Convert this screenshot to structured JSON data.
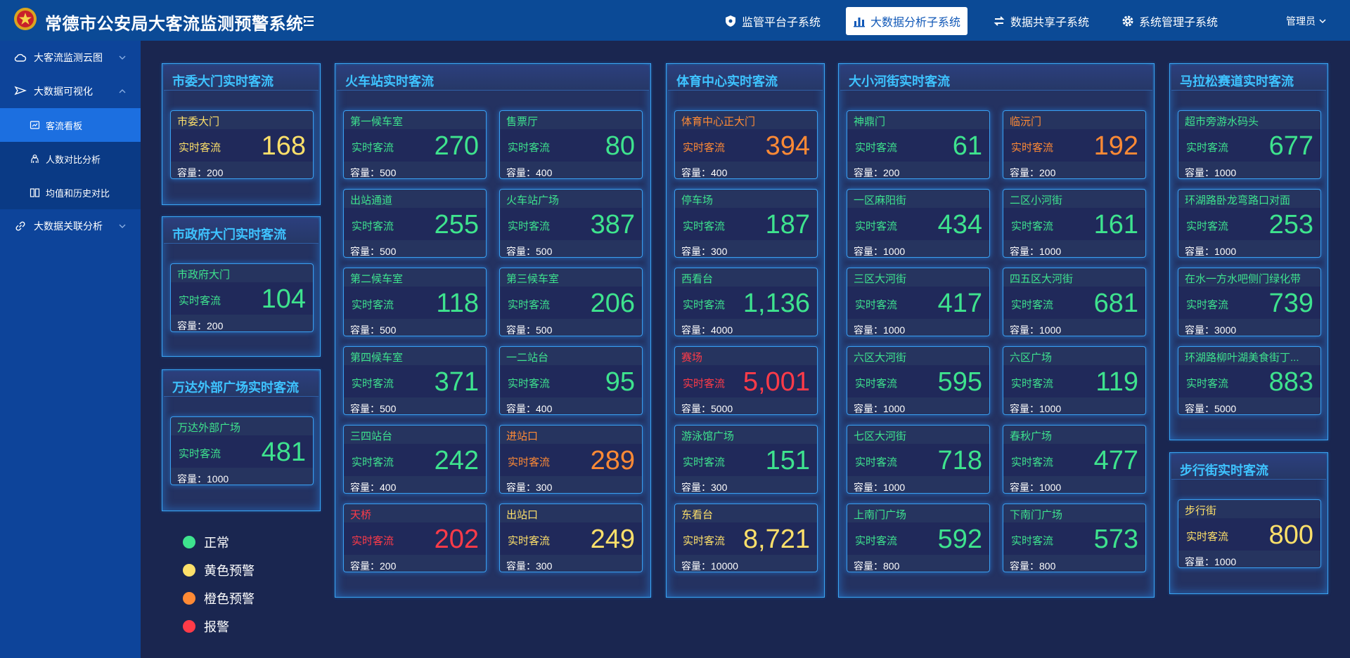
{
  "header": {
    "title": "常德市公安局大客流监测预警系统",
    "nav": [
      {
        "label": "监管平台子系统",
        "icon": "shield-icon"
      },
      {
        "label": "大数据分析子系统",
        "icon": "bar-chart-icon",
        "active": true
      },
      {
        "label": "数据共享子系统",
        "icon": "swap-icon"
      },
      {
        "label": "系统管理子系统",
        "icon": "gear-icon"
      }
    ],
    "user": "管理员"
  },
  "sidebar": {
    "items": [
      {
        "label": "大客流监测云图",
        "icon": "cloud-icon"
      },
      {
        "label": "大数据可视化",
        "icon": "send-icon"
      },
      {
        "label": "大数据关联分析",
        "icon": "link-icon"
      }
    ],
    "subitems": [
      {
        "label": "客流看板",
        "icon": "dashboard-icon",
        "active": true
      },
      {
        "label": "人数对比分析",
        "icon": "people-icon"
      },
      {
        "label": "均值和历史对比",
        "icon": "compare-icon"
      }
    ]
  },
  "labels": {
    "realtime": "实时客流",
    "capacity_prefix": "容量："
  },
  "colors": {
    "normal": "#3ee38e",
    "yellow": "#fde06a",
    "orange": "#ff8a35",
    "alarm": "#ff3b48",
    "title": "#3ec3ff"
  },
  "panels": [
    {
      "title": "市委大门实时客流",
      "cards": [
        {
          "name": "市委大门",
          "value": "168",
          "capacity": "200",
          "level": "yellow"
        }
      ]
    },
    {
      "title": "市政府大门实时客流",
      "cards": [
        {
          "name": "市政府大门",
          "value": "104",
          "capacity": "200",
          "level": "normal"
        }
      ]
    },
    {
      "title": "万达外部广场实时客流",
      "cards": [
        {
          "name": "万达外部广场",
          "value": "481",
          "capacity": "1000",
          "level": "normal"
        }
      ]
    },
    {
      "title": "火车站实时客流",
      "cards": [
        {
          "name": "第一候车室",
          "value": "270",
          "capacity": "500",
          "level": "normal"
        },
        {
          "name": "售票厅",
          "value": "80",
          "capacity": "400",
          "level": "normal"
        },
        {
          "name": "出站通道",
          "value": "255",
          "capacity": "500",
          "level": "normal"
        },
        {
          "name": "火车站广场",
          "value": "387",
          "capacity": "500",
          "level": "normal"
        },
        {
          "name": "第二候车室",
          "value": "118",
          "capacity": "500",
          "level": "normal"
        },
        {
          "name": "第三候车室",
          "value": "206",
          "capacity": "500",
          "level": "normal"
        },
        {
          "name": "第四候车室",
          "value": "371",
          "capacity": "500",
          "level": "normal"
        },
        {
          "name": "一二站台",
          "value": "95",
          "capacity": "400",
          "level": "normal"
        },
        {
          "name": "三四站台",
          "value": "242",
          "capacity": "400",
          "level": "normal"
        },
        {
          "name": "进站口",
          "value": "289",
          "capacity": "300",
          "level": "orange"
        },
        {
          "name": "天桥",
          "value": "202",
          "capacity": "200",
          "level": "alarm"
        },
        {
          "name": "出站口",
          "value": "249",
          "capacity": "300",
          "level": "yellow"
        }
      ]
    },
    {
      "title": "体育中心实时客流",
      "cards": [
        {
          "name": "体育中心正大门",
          "value": "394",
          "capacity": "400",
          "level": "orange"
        },
        {
          "name": "停车场",
          "value": "187",
          "capacity": "300",
          "level": "normal"
        },
        {
          "name": "西看台",
          "value": "1,136",
          "capacity": "4000",
          "level": "normal"
        },
        {
          "name": "赛场",
          "value": "5,001",
          "capacity": "5000",
          "level": "alarm"
        },
        {
          "name": "游泳馆广场",
          "value": "151",
          "capacity": "300",
          "level": "normal"
        },
        {
          "name": "东看台",
          "value": "8,721",
          "capacity": "10000",
          "level": "yellow"
        }
      ]
    },
    {
      "title": "大小河街实时客流",
      "cards": [
        {
          "name": "神鼎门",
          "value": "61",
          "capacity": "200",
          "level": "normal"
        },
        {
          "name": "临沅门",
          "value": "192",
          "capacity": "200",
          "level": "orange"
        },
        {
          "name": "一区麻阳街",
          "value": "434",
          "capacity": "1000",
          "level": "normal"
        },
        {
          "name": "二区小河街",
          "value": "161",
          "capacity": "1000",
          "level": "normal"
        },
        {
          "name": "三区大河街",
          "value": "417",
          "capacity": "1000",
          "level": "normal"
        },
        {
          "name": "四五区大河街",
          "value": "681",
          "capacity": "1000",
          "level": "normal"
        },
        {
          "name": "六区大河街",
          "value": "595",
          "capacity": "1000",
          "level": "normal"
        },
        {
          "name": "六区广场",
          "value": "119",
          "capacity": "1000",
          "level": "normal"
        },
        {
          "name": "七区大河街",
          "value": "718",
          "capacity": "1000",
          "level": "normal"
        },
        {
          "name": "春秋广场",
          "value": "477",
          "capacity": "1000",
          "level": "normal"
        },
        {
          "name": "上南门广场",
          "value": "592",
          "capacity": "800",
          "level": "normal"
        },
        {
          "name": "下南门广场",
          "value": "573",
          "capacity": "800",
          "level": "normal"
        }
      ]
    },
    {
      "title": "马拉松赛道实时客流",
      "cards": [
        {
          "name": "超市旁游水码头",
          "value": "677",
          "capacity": "1000",
          "level": "normal"
        },
        {
          "name": "环湖路卧龙弯路口对面",
          "value": "253",
          "capacity": "1000",
          "level": "normal"
        },
        {
          "name": "在水一方水吧侧门绿化带",
          "value": "739",
          "capacity": "3000",
          "level": "normal"
        },
        {
          "name": "环湖路柳叶湖美食街丁...",
          "value": "883",
          "capacity": "5000",
          "level": "normal"
        }
      ]
    },
    {
      "title": "步行街实时客流",
      "cards": [
        {
          "name": "步行街",
          "value": "800",
          "capacity": "1000",
          "level": "yellow"
        }
      ]
    }
  ],
  "legend": [
    {
      "label": "正常",
      "color": "#3ee38e"
    },
    {
      "label": "黄色预警",
      "color": "#fde06a"
    },
    {
      "label": "橙色预警",
      "color": "#ff8a35"
    },
    {
      "label": "报警",
      "color": "#ff3b48"
    }
  ]
}
